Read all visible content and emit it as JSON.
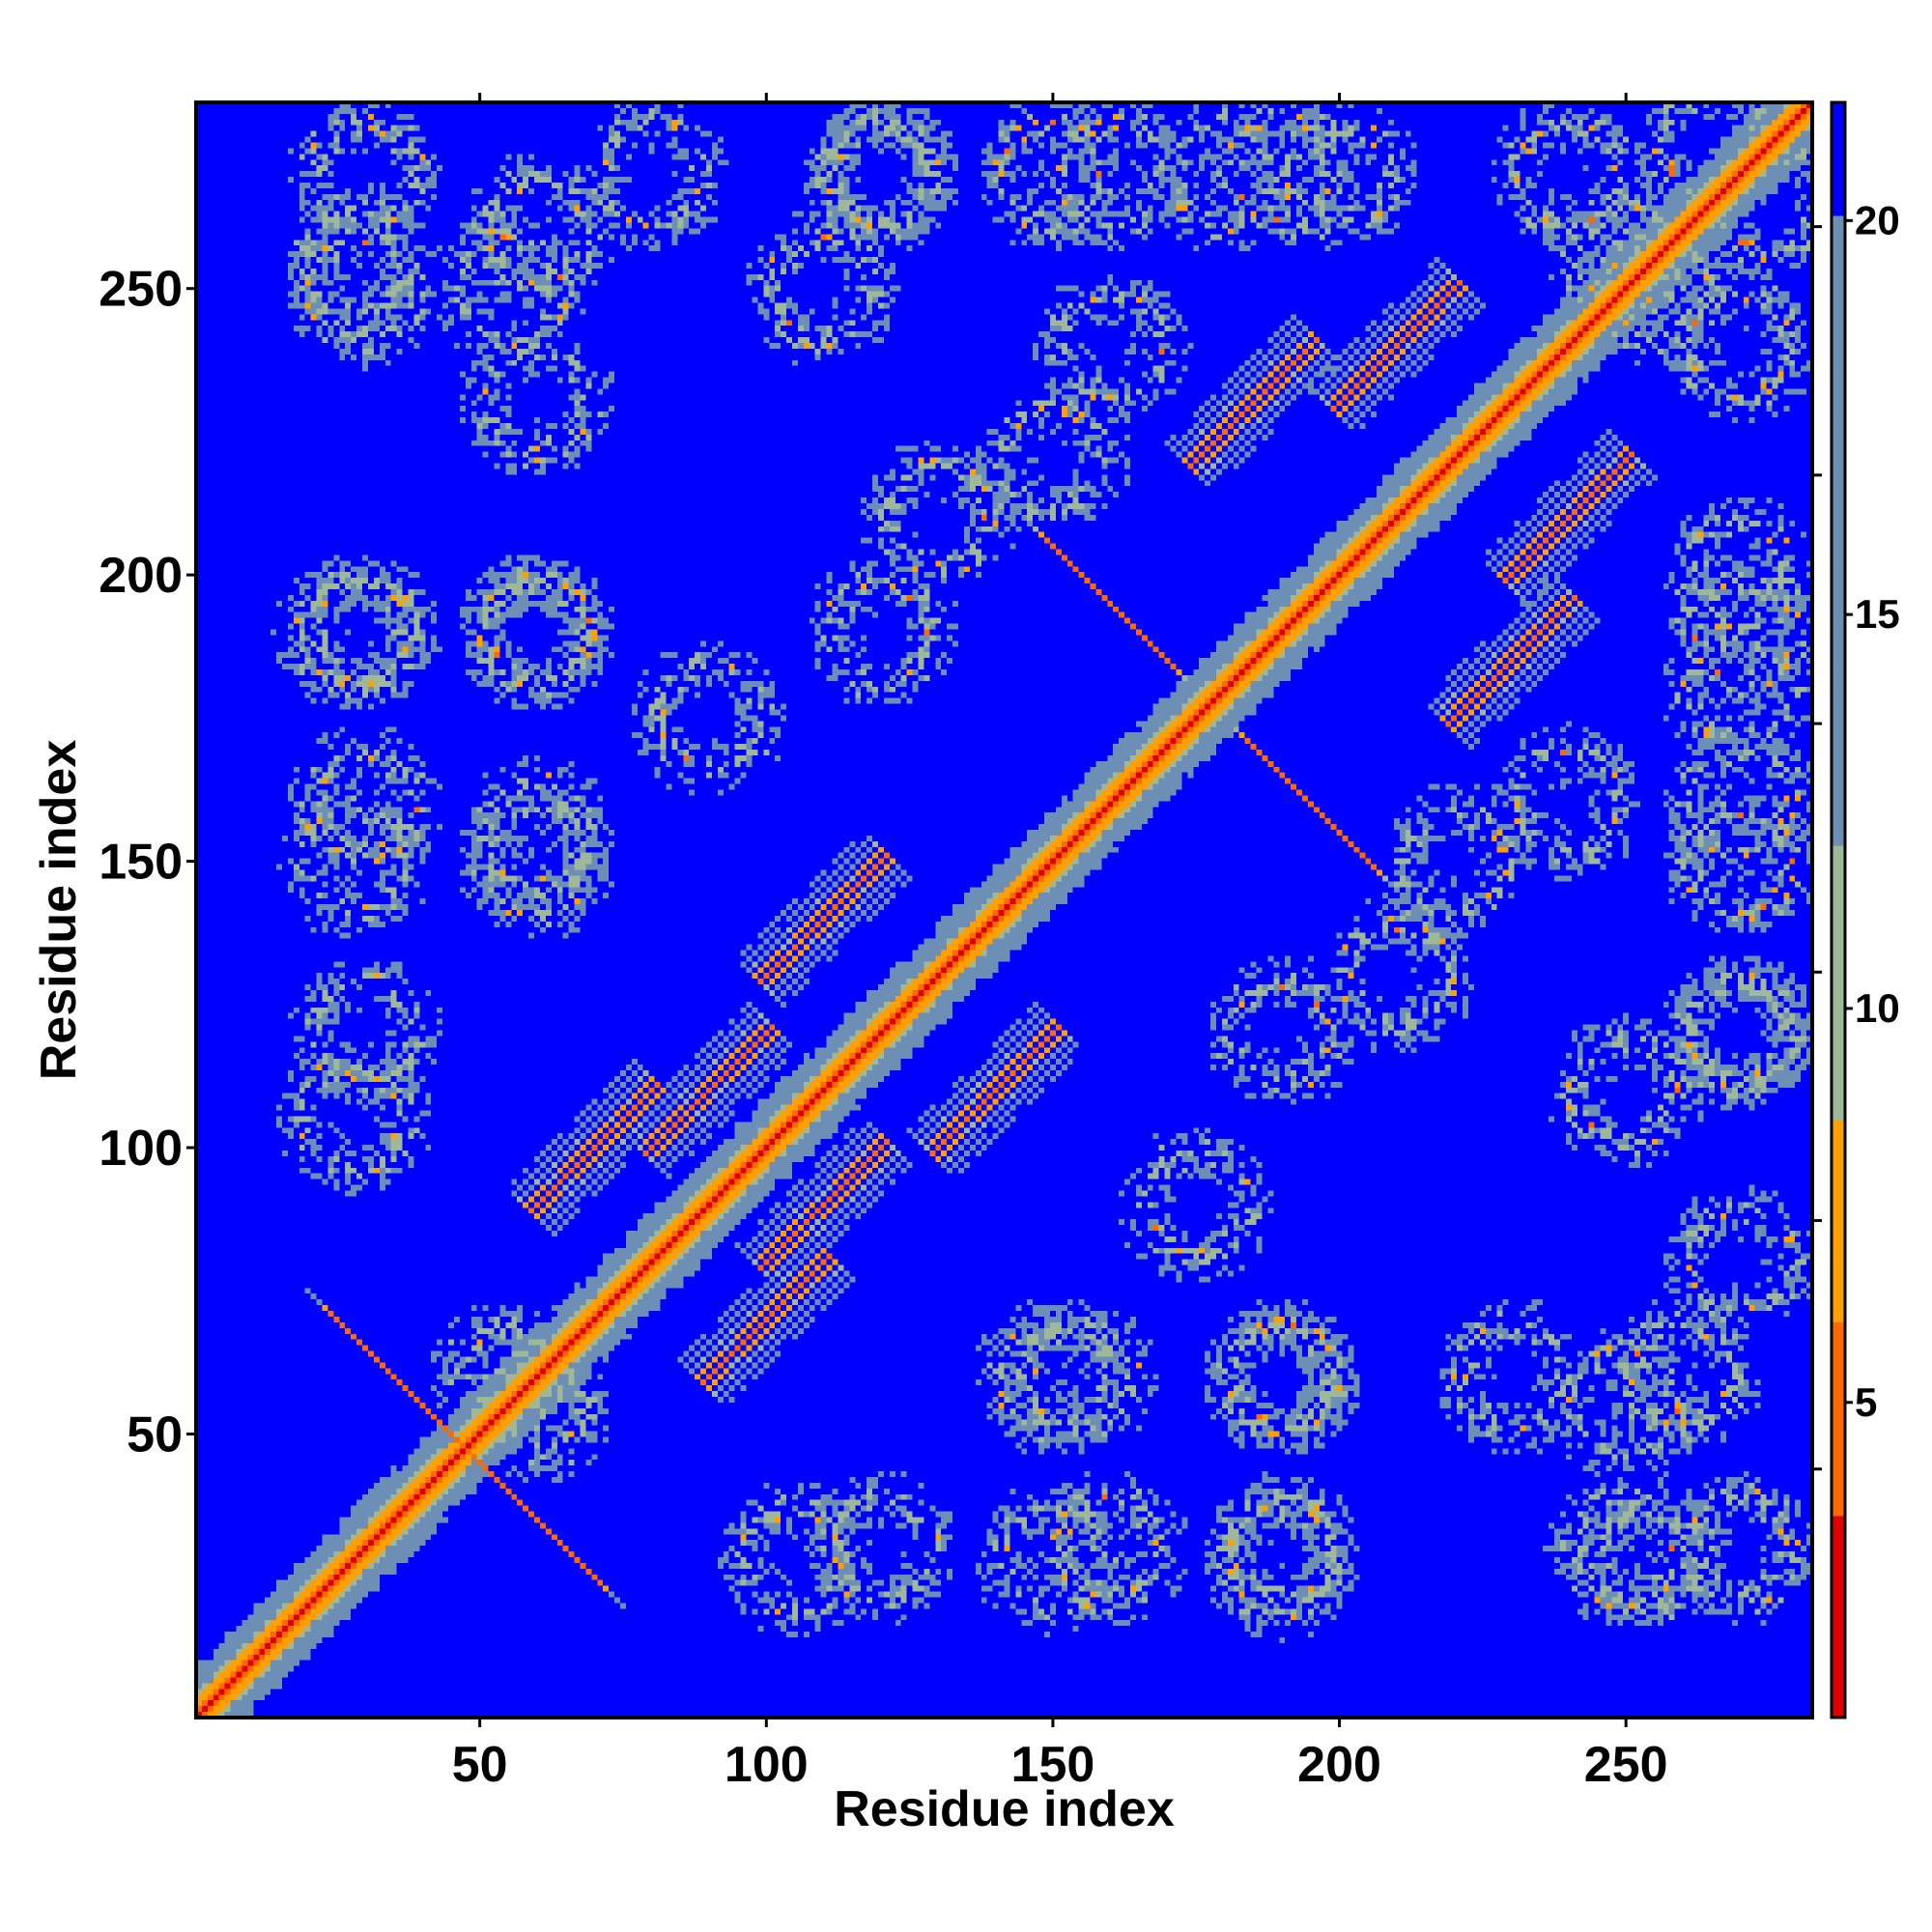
{
  "chart_data": {
    "type": "heatmap",
    "title": "",
    "xlabel": "Residue index",
    "ylabel": "Residue index",
    "n_residues": 282,
    "xlim": [
      1,
      282
    ],
    "ylim": [
      1,
      282
    ],
    "x_ticks": [
      50,
      100,
      150,
      200,
      250
    ],
    "y_ticks": [
      50,
      100,
      150,
      200,
      250
    ],
    "colorbar": {
      "range": [
        1,
        21.5
      ],
      "ticks": [
        5,
        10,
        15,
        20
      ],
      "colors": {
        "near": "#e00000",
        "close": "#ff6a00",
        "mid": "#ffa000",
        "far": "#9fb89a",
        "very_far": "#6d8fb5",
        "background": "#0000ff"
      }
    },
    "contact_features": [
      {
        "type": "diagonal",
        "description": "distance ~1-4 along main diagonal"
      },
      {
        "type": "antiparallel_strand_pair",
        "center": [
          110,
          140
        ]
      },
      {
        "type": "antiparallel_strand_pair",
        "center": [
          140,
          110
        ]
      },
      {
        "type": "antiparallel_strand_pair",
        "center": [
          90,
          110
        ]
      },
      {
        "type": "antiparallel_strand_pair",
        "center": [
          110,
          90
        ]
      },
      {
        "type": "antiparallel_strand_pair",
        "center": [
          70,
          100
        ]
      },
      {
        "type": "antiparallel_strand_pair",
        "center": [
          100,
          70
        ]
      },
      {
        "type": "antiparallel_strand_pair",
        "center": [
          210,
          240
        ]
      },
      {
        "type": "antiparallel_strand_pair",
        "center": [
          240,
          210
        ]
      },
      {
        "type": "antiparallel_strand_pair",
        "center": [
          185,
          230
        ]
      },
      {
        "type": "antiparallel_strand_pair",
        "center": [
          230,
          185
        ]
      },
      {
        "type": "parallel_strand_pair",
        "center": [
          195,
          160
        ]
      },
      {
        "type": "parallel_strand_pair",
        "center": [
          160,
          195
        ]
      },
      {
        "type": "parallel_strand_pair",
        "center": [
          35,
          60
        ]
      },
      {
        "type": "parallel_strand_pair",
        "center": [
          60,
          35
        ]
      }
    ]
  }
}
